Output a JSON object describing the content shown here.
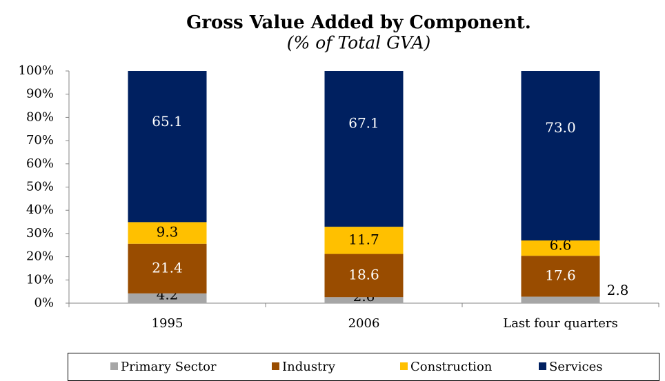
{
  "chart_data": {
    "type": "stacked_bar",
    "title": "Gross Value Added by Component.",
    "subtitle": "(% of Total GVA)",
    "categories": [
      "1995",
      "2006",
      "Last four quarters"
    ],
    "series": [
      {
        "name": "Primary Sector",
        "color": "#a6a6a6",
        "values": [
          4.2,
          2.6,
          2.8
        ]
      },
      {
        "name": "Industry",
        "color": "#994c00",
        "values": [
          21.4,
          18.6,
          17.6
        ]
      },
      {
        "name": "Construction",
        "color": "#ffc000",
        "values": [
          9.3,
          11.7,
          6.6
        ]
      },
      {
        "name": "Services",
        "color": "#002060",
        "values": [
          65.1,
          67.1,
          73.0
        ],
        "value_labels": [
          "65.1",
          "67.1",
          "73.0"
        ]
      }
    ],
    "ylim": [
      0,
      100
    ],
    "yticks": [
      {
        "value": 0,
        "label": "0%"
      },
      {
        "value": 10,
        "label": "10%"
      },
      {
        "value": 20,
        "label": "20%"
      },
      {
        "value": 30,
        "label": "30%"
      },
      {
        "value": 40,
        "label": "40%"
      },
      {
        "value": 50,
        "label": "50%"
      },
      {
        "value": 60,
        "label": "60%"
      },
      {
        "value": 70,
        "label": "70%"
      },
      {
        "value": 80,
        "label": "80%"
      },
      {
        "value": 90,
        "label": "90%"
      },
      {
        "value": 100,
        "label": "100%"
      }
    ],
    "grid": false,
    "legend": "bottom"
  }
}
